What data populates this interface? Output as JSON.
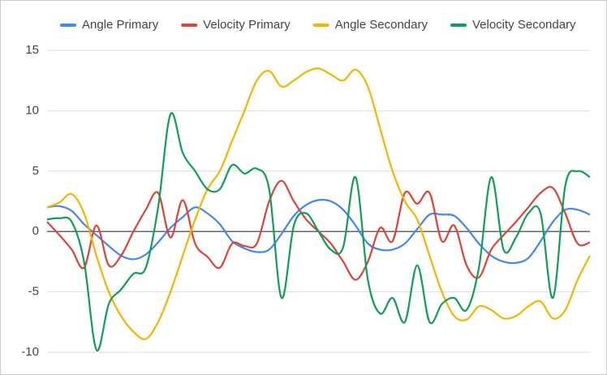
{
  "chart_data": {
    "type": "line",
    "series": [
      {
        "name": "Angle Primary",
        "color": "#4285f4",
        "values": [
          2,
          2.1,
          1.7,
          0.6,
          -0.3,
          -1.2,
          -2,
          -2.3,
          -1.9,
          -0.9,
          0.3,
          1.2,
          2,
          1.5,
          0.6,
          -0.8,
          -1.4,
          -1.7,
          -1.5,
          -0.2,
          1.3,
          2.2,
          2.6,
          2.5,
          1.8,
          0.5,
          -1,
          -1.5,
          -1.5,
          -1,
          0.2,
          1.4,
          1.4,
          1.3,
          0.3,
          -1,
          -2,
          -2.5,
          -2.6,
          -2.2,
          -0.8,
          0.8,
          1.8,
          1.8,
          1.4
        ]
      },
      {
        "name": "Velocity Primary",
        "color": "#db4437",
        "values": [
          0.8,
          -0.3,
          -1.5,
          -3,
          0.5,
          -2.8,
          -2,
          0,
          1.8,
          3.2,
          -0.5,
          2.6,
          -1,
          -2.1,
          -3,
          -1,
          -1.2,
          -1,
          2.5,
          4.2,
          2.5,
          1,
          0,
          -1,
          -2.5,
          -4,
          -2.5,
          0.3,
          -0.8,
          3.2,
          2.3,
          3.2,
          -0.8,
          0.5,
          -2.8,
          -3.8,
          -1.5,
          -0.3,
          0.8,
          2,
          3.2,
          3.6,
          1.5,
          -1,
          -0.9
        ]
      },
      {
        "name": "Angle Secondary",
        "color": "#f4b400",
        "values": [
          2,
          2.4,
          3.1,
          1.5,
          -2,
          -5,
          -7,
          -8.3,
          -8.9,
          -7.5,
          -5,
          -2,
          1,
          3.5,
          5,
          7.5,
          10,
          12.5,
          13.3,
          12,
          12.5,
          13.2,
          13.5,
          13,
          12.5,
          13.4,
          12,
          8.5,
          5,
          2.5,
          1,
          -2,
          -5,
          -7,
          -7.3,
          -6.2,
          -6.5,
          -7.2,
          -7,
          -6.2,
          -5.8,
          -7.2,
          -6.5,
          -4,
          -2
        ]
      },
      {
        "name": "Velocity Secondary",
        "color": "#0f9d58",
        "values": [
          1,
          1.1,
          0.8,
          -2.5,
          -9.8,
          -6,
          -4.8,
          -3.5,
          -3,
          2,
          9.7,
          6.5,
          5,
          3.5,
          3.5,
          5.5,
          4.8,
          5.2,
          3.5,
          -5.5,
          0.5,
          1.5,
          0,
          -1.5,
          -1.3,
          4.5,
          -4,
          -6.8,
          -5.5,
          -7.5,
          -2.8,
          -7.5,
          -6,
          -5.5,
          -6.5,
          -3,
          4.5,
          -1.5,
          -0.5,
          1.5,
          1.5,
          -5.5,
          3.8,
          5,
          4.5
        ]
      }
    ],
    "ylim": [
      -10,
      15
    ],
    "yticks": [
      -10,
      -5,
      0,
      5,
      10,
      15
    ],
    "grid": true,
    "legend": "top"
  }
}
